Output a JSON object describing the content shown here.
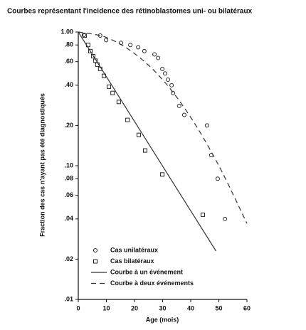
{
  "chart_data": {
    "type": "scatter",
    "title": "Courbes représentant l'incidence des rétinoblastomes uni- ou bilatéraux",
    "x_label": "Age (mois)",
    "y_label": "Fraction des cas n'ayant pas été diagnostiqués",
    "xlim": [
      0,
      60
    ],
    "xticks": [
      0,
      10,
      20,
      30,
      40,
      50,
      60
    ],
    "ylim": [
      0.01,
      1
    ],
    "y_scale": "log",
    "yticks": [
      {
        "value": 1,
        "label": "1.00"
      },
      {
        "value": 0.8,
        "label": ".80"
      },
      {
        "value": 0.6,
        "label": ".60"
      },
      {
        "value": 0.4,
        "label": ".40"
      },
      {
        "value": 0.2,
        "label": ".20"
      },
      {
        "value": 0.1,
        "label": ".10"
      },
      {
        "value": 0.08,
        "label": ".08"
      },
      {
        "value": 0.06,
        "label": ".06"
      },
      {
        "value": 0.04,
        "label": ".04"
      },
      {
        "value": 0.02,
        "label": ".02"
      },
      {
        "value": 0.01,
        "label": ".01"
      }
    ],
    "legend": "lower-left",
    "series": [
      {
        "name": "Cas unilatéraux",
        "kind": "scatter",
        "marker": "circle",
        "color": "#222222",
        "x": [
          2,
          7.8,
          9.9,
          15.2,
          18.5,
          21.3,
          23.5,
          27.1,
          28.4,
          29.9,
          30.9,
          31.9,
          33.2,
          33.7,
          35.9,
          37.7,
          45.8,
          47.3,
          49.6,
          52.2
        ],
        "values": [
          0.95,
          0.94,
          0.87,
          0.83,
          0.8,
          0.77,
          0.72,
          0.68,
          0.64,
          0.53,
          0.49,
          0.44,
          0.4,
          0.35,
          0.28,
          0.24,
          0.2,
          0.12,
          0.08,
          0.04
        ]
      },
      {
        "name": "Cas bilatéraux",
        "kind": "scatter",
        "marker": "square",
        "color": "#222222",
        "x": [
          2.3,
          3.5,
          4.3,
          5.3,
          6.1,
          6.8,
          7.8,
          9.1,
          10.9,
          12.2,
          14.4,
          17.5,
          21.5,
          23.8,
          29.9,
          44.3
        ],
        "values": [
          0.94,
          0.8,
          0.72,
          0.66,
          0.61,
          0.57,
          0.53,
          0.47,
          0.39,
          0.35,
          0.3,
          0.22,
          0.17,
          0.13,
          0.086,
          0.043
        ]
      },
      {
        "name": "Courbe à un événement",
        "kind": "line",
        "dash": "solid",
        "color": "#333333",
        "x": [
          0,
          49
        ],
        "values": [
          1,
          0.023
        ]
      },
      {
        "name": "Courbe à deux événements",
        "kind": "line",
        "dash": "dashed",
        "color": "#333333",
        "x": [
          0,
          10,
          20,
          30,
          40,
          50,
          60
        ],
        "values": [
          1,
          0.91,
          0.69,
          0.44,
          0.23,
          0.1,
          0.037
        ]
      }
    ]
  }
}
